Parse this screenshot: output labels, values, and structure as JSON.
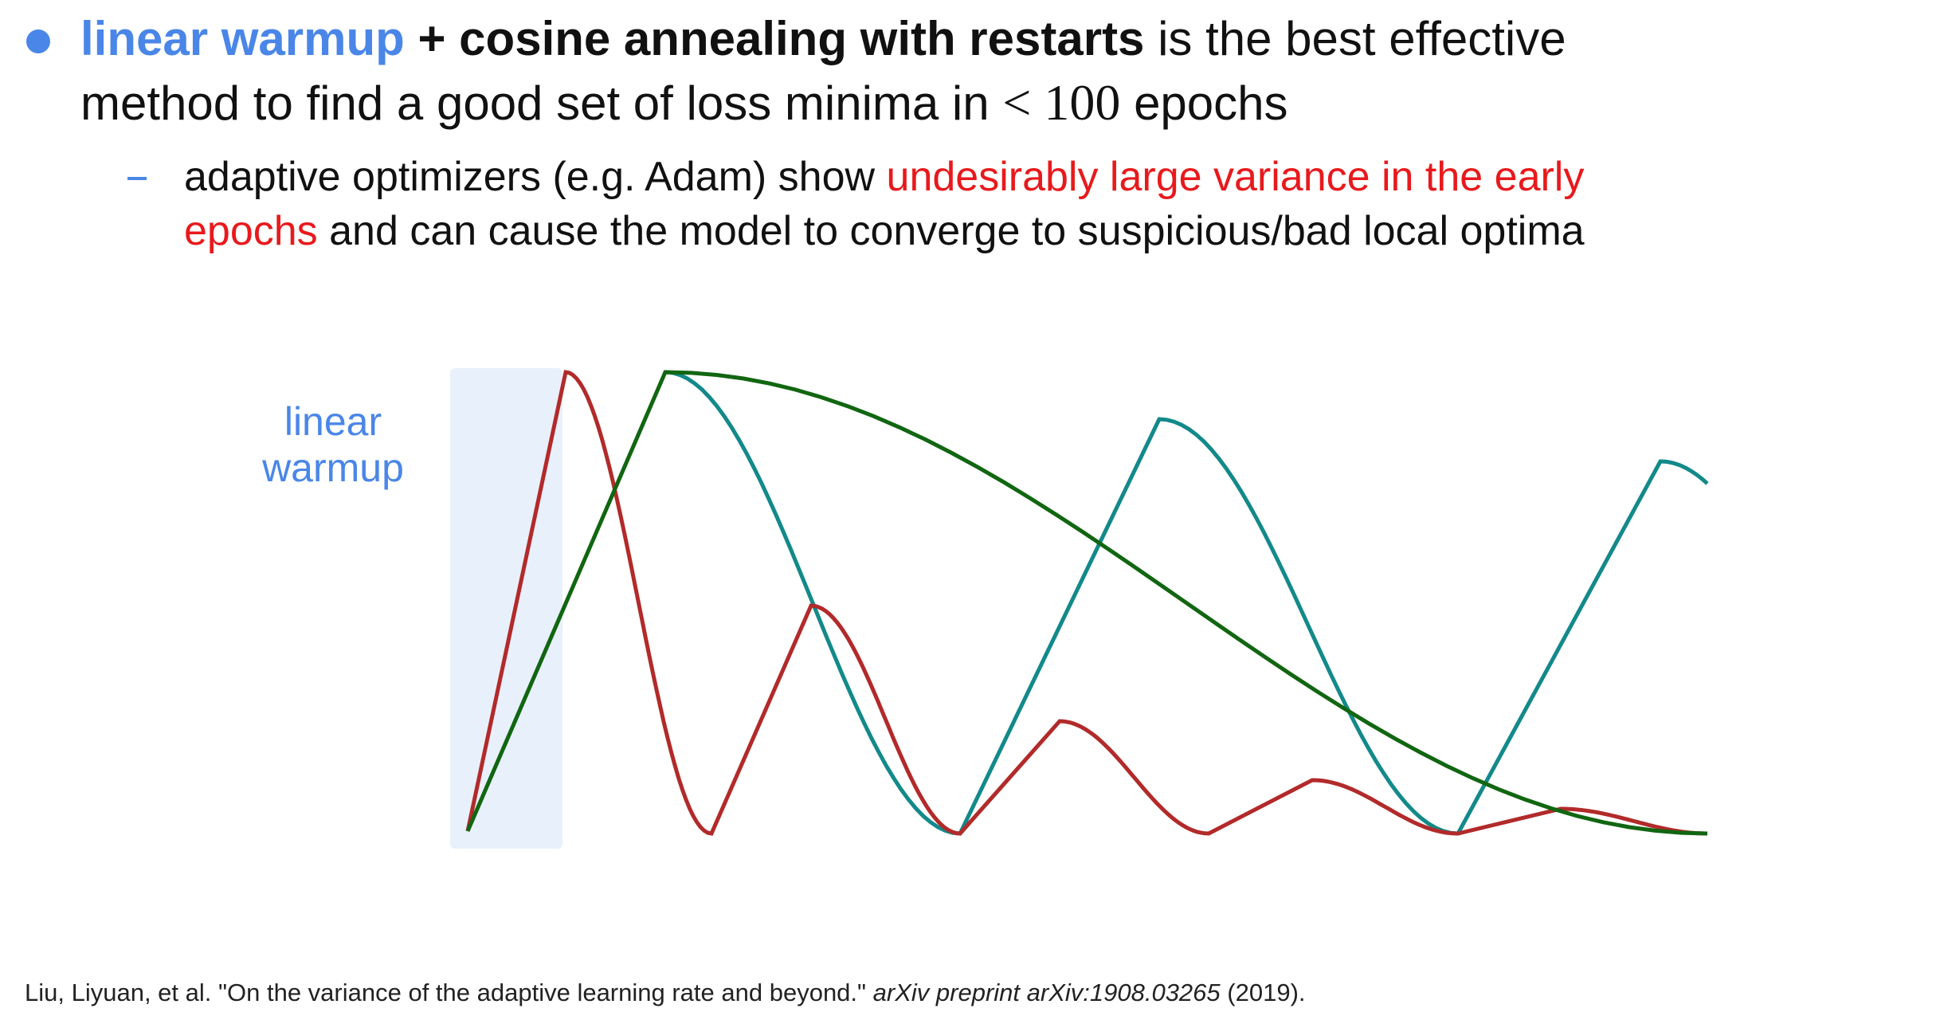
{
  "bullet": {
    "lead": "linear warmup",
    "bold": "+ cosine annealing with restarts",
    "line1_rest": "is the best effective",
    "line2_start": "method to find a good set of loss minima in",
    "math": "< 100",
    "line2_end": "epochs"
  },
  "sub": {
    "start": "adaptive optimizers (e.g. Adam) show",
    "highlight_line1": "undesirably large variance in the early",
    "highlight_line2": "epochs",
    "end": "and can cause the model to converge to suspicious/bad local optima"
  },
  "diagram": {
    "label_line1": "linear",
    "label_line2": "warmup"
  },
  "citation": {
    "authors": "Liu, Liyuan, et al. \"On the variance of the adaptive learning rate and beyond.\"",
    "venue": "arXiv preprint arXiv:1908.03265",
    "year": "(2019)."
  }
}
